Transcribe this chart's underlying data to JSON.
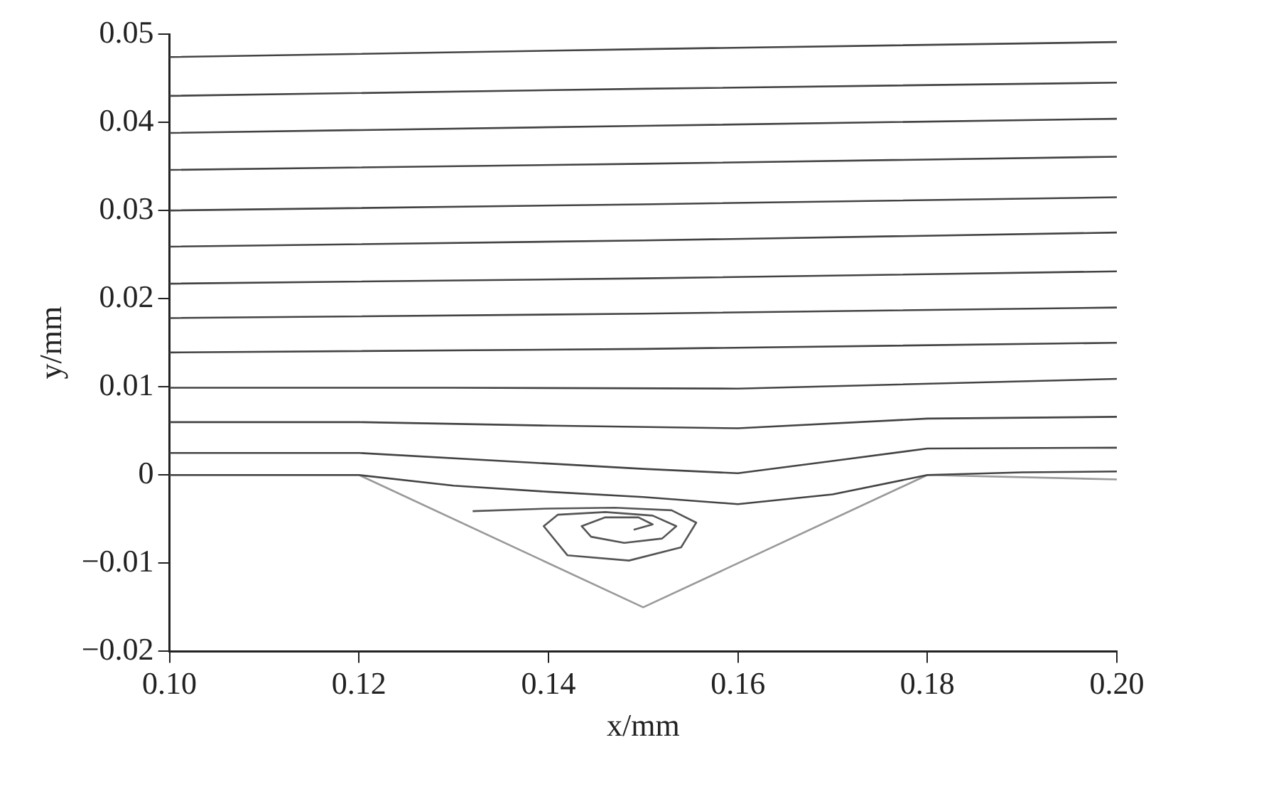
{
  "chart_data": {
    "type": "line",
    "xlabel": "x/mm",
    "ylabel": "y/mm",
    "xlim": [
      0.1,
      0.2
    ],
    "ylim": [
      -0.02,
      0.05
    ],
    "xticks": [
      {
        "value": 0.1,
        "label": "0.10"
      },
      {
        "value": 0.12,
        "label": "0.12"
      },
      {
        "value": 0.14,
        "label": "0.14"
      },
      {
        "value": 0.16,
        "label": "0.16"
      },
      {
        "value": 0.18,
        "label": "0.18"
      },
      {
        "value": 0.2,
        "label": "0.20"
      }
    ],
    "yticks": [
      {
        "value": -0.02,
        "label": "−0.02"
      },
      {
        "value": -0.01,
        "label": "−0.01"
      },
      0,
      0.01,
      0.02,
      0.03,
      0.04,
      0.05
    ],
    "marker": "none",
    "line_style": "solid",
    "legend": false,
    "grid": false,
    "series": [
      {
        "color": "#444444",
        "x": [
          0.1,
          0.15,
          0.2
        ],
        "values": [
          0.0474,
          0.0483,
          0.0491
        ]
      },
      {
        "color": "#444444",
        "x": [
          0.1,
          0.15,
          0.2
        ],
        "values": [
          0.043,
          0.0438,
          0.0445
        ]
      },
      {
        "color": "#444444",
        "x": [
          0.1,
          0.15,
          0.2
        ],
        "values": [
          0.0388,
          0.0396,
          0.0404
        ]
      },
      {
        "color": "#444444",
        "x": [
          0.1,
          0.15,
          0.2
        ],
        "values": [
          0.0346,
          0.0353,
          0.0361
        ]
      },
      {
        "color": "#444444",
        "x": [
          0.1,
          0.15,
          0.2
        ],
        "values": [
          0.03,
          0.0307,
          0.0315
        ]
      },
      {
        "color": "#444444",
        "x": [
          0.1,
          0.15,
          0.2
        ],
        "values": [
          0.0259,
          0.0266,
          0.0275
        ]
      },
      {
        "color": "#444444",
        "x": [
          0.1,
          0.15,
          0.2
        ],
        "values": [
          0.0217,
          0.0223,
          0.0231
        ]
      },
      {
        "color": "#444444",
        "x": [
          0.1,
          0.15,
          0.2
        ],
        "values": [
          0.0178,
          0.0183,
          0.019
        ]
      },
      {
        "color": "#444444",
        "x": [
          0.1,
          0.15,
          0.2
        ],
        "values": [
          0.0139,
          0.0143,
          0.015
        ]
      },
      {
        "color": "#444444",
        "x": [
          0.1,
          0.13,
          0.16,
          0.2
        ],
        "values": [
          0.0099,
          0.0099,
          0.0098,
          0.0109
        ]
      },
      {
        "color": "#444444",
        "x": [
          0.1,
          0.12,
          0.14,
          0.16,
          0.18,
          0.2
        ],
        "values": [
          0.006,
          0.006,
          0.0056,
          0.0053,
          0.0064,
          0.0066
        ]
      },
      {
        "color": "#444444",
        "x": [
          0.1,
          0.12,
          0.14,
          0.15,
          0.16,
          0.17,
          0.18,
          0.2
        ],
        "values": [
          0.0025,
          0.0025,
          0.0013,
          0.0007,
          0.0002,
          0.0016,
          0.003,
          0.0031
        ]
      },
      {
        "color": "#444444",
        "x": [
          0.1,
          0.12,
          0.13,
          0.14,
          0.15,
          0.16,
          0.17,
          0.18,
          0.19,
          0.2
        ],
        "values": [
          0,
          0,
          -0.0012,
          -0.0019,
          -0.0025,
          -0.0033,
          -0.0022,
          0,
          0.0003,
          0.0004
        ]
      },
      {
        "color": "#999999",
        "x": [
          0.1,
          0.12,
          0.15,
          0.18,
          0.2
        ],
        "values": [
          0,
          0,
          -0.015,
          0,
          -0.0005
        ]
      },
      {
        "color": "#555555",
        "x": [
          0.132,
          0.14,
          0.147,
          0.153,
          0.1556,
          0.154,
          0.1485,
          0.142,
          0.1395,
          0.141,
          0.146,
          0.151,
          0.1535,
          0.152,
          0.148,
          0.1445,
          0.1435,
          0.146,
          0.1495,
          0.151,
          0.149
        ],
        "values": [
          -0.0041,
          -0.0038,
          -0.0037,
          -0.004,
          -0.0054,
          -0.0082,
          -0.0097,
          -0.0091,
          -0.0058,
          -0.0045,
          -0.0042,
          -0.0046,
          -0.0058,
          -0.0072,
          -0.0077,
          -0.007,
          -0.0058,
          -0.0048,
          -0.0048,
          -0.0056,
          -0.0062
        ]
      }
    ]
  }
}
